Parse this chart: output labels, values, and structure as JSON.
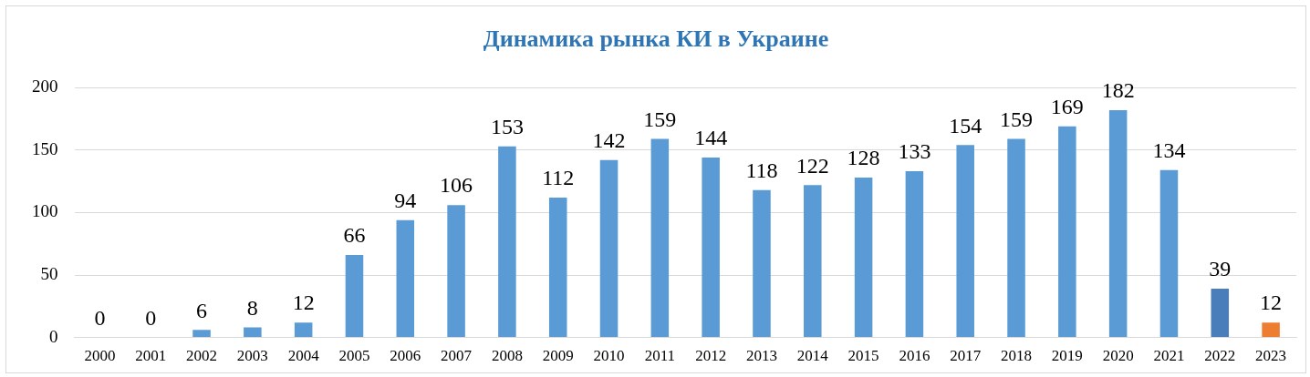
{
  "chart_data": {
    "type": "bar",
    "title": "Динамика рынка КИ в Украине",
    "categories": [
      "2000",
      "2001",
      "2002",
      "2003",
      "2004",
      "2005",
      "2006",
      "2007",
      "2008",
      "2009",
      "2010",
      "2011",
      "2012",
      "2013",
      "2014",
      "2015",
      "2016",
      "2017",
      "2018",
      "2019",
      "2020",
      "2021",
      "2022",
      "2023"
    ],
    "values": [
      0,
      0,
      6,
      8,
      12,
      66,
      94,
      106,
      153,
      112,
      142,
      159,
      144,
      118,
      122,
      128,
      133,
      154,
      159,
      169,
      182,
      134,
      39,
      12
    ],
    "colors": [
      "#5b9bd5",
      "#5b9bd5",
      "#5b9bd5",
      "#5b9bd5",
      "#5b9bd5",
      "#5b9bd5",
      "#5b9bd5",
      "#5b9bd5",
      "#5b9bd5",
      "#5b9bd5",
      "#5b9bd5",
      "#5b9bd5",
      "#5b9bd5",
      "#5b9bd5",
      "#5b9bd5",
      "#5b9bd5",
      "#5b9bd5",
      "#5b9bd5",
      "#5b9bd5",
      "#5b9bd5",
      "#5b9bd5",
      "#5b9bd5",
      "#4a7ebb",
      "#ed7d31"
    ],
    "ylim": [
      0,
      200
    ],
    "yticks": [
      0,
      50,
      100,
      150,
      200
    ],
    "grid": "y",
    "data_labels": true
  }
}
